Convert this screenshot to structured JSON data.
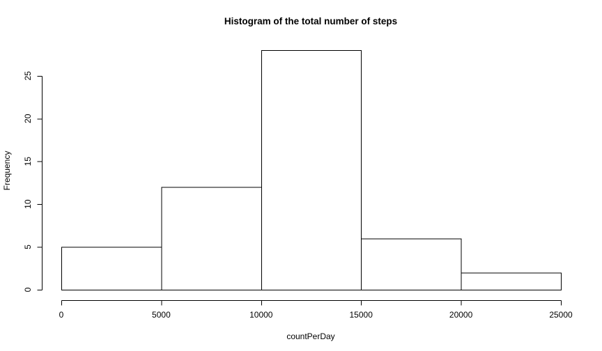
{
  "chart_data": {
    "type": "bar",
    "title": "Histogram of the total number of steps",
    "xlabel": "countPerDay",
    "ylabel": "Frequency",
    "bins": [
      {
        "start": 0,
        "end": 5000,
        "count": 5
      },
      {
        "start": 5000,
        "end": 10000,
        "count": 12
      },
      {
        "start": 10000,
        "end": 15000,
        "count": 28
      },
      {
        "start": 15000,
        "end": 20000,
        "count": 6
      },
      {
        "start": 20000,
        "end": 25000,
        "count": 2
      }
    ],
    "xlim": [
      0,
      25000
    ],
    "ylim": [
      0,
      28
    ],
    "x_ticks": [
      0,
      5000,
      10000,
      15000,
      20000,
      25000
    ],
    "y_ticks": [
      0,
      5,
      10,
      15,
      20,
      25
    ],
    "bar_fill": "#ffffff",
    "bar_stroke": "#000000",
    "grid": false,
    "legend": "none"
  }
}
